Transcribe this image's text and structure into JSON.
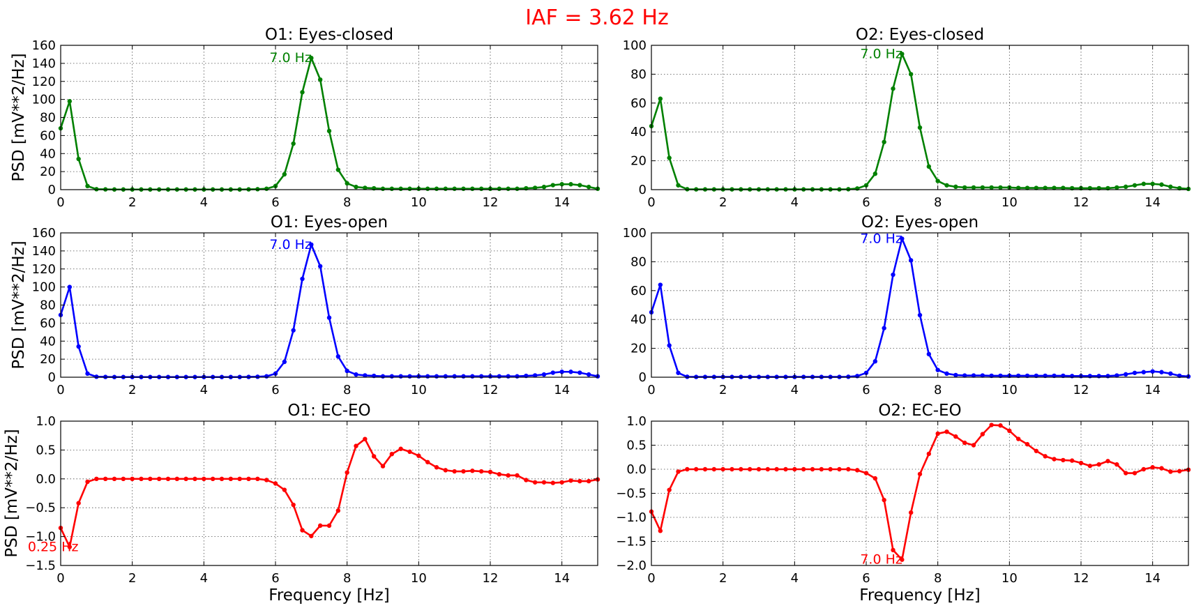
{
  "figure": {
    "suptitle": "IAF = 3.62 Hz",
    "suptitle_color": "#ff0000"
  },
  "chart_data": [
    {
      "id": "o1-ec",
      "type": "line",
      "title": "O1: Eyes-closed",
      "ylabel": "PSD [mV**2/Hz]",
      "xlabel": "",
      "xlim": [
        0,
        15
      ],
      "ylim": [
        0,
        160
      ],
      "xticks": [
        "0",
        "2",
        "4",
        "6",
        "8",
        "10",
        "12",
        "14"
      ],
      "yticks": [
        "0",
        "20",
        "40",
        "60",
        "80",
        "100",
        "120",
        "140",
        "160"
      ],
      "grid": true,
      "color": "#008000",
      "annotation": {
        "text": "7.0 Hz",
        "x": 7.0,
        "y": 146
      },
      "x": [
        0,
        0.25,
        0.5,
        0.75,
        1,
        1.25,
        1.5,
        1.75,
        2,
        2.25,
        2.5,
        2.75,
        3,
        3.25,
        3.5,
        3.75,
        4,
        4.25,
        4.5,
        4.75,
        5,
        5.25,
        5.5,
        5.75,
        6,
        6.25,
        6.5,
        6.75,
        7,
        7.25,
        7.5,
        7.75,
        8,
        8.25,
        8.5,
        8.75,
        9,
        9.25,
        9.5,
        9.75,
        10,
        10.25,
        10.5,
        10.75,
        11,
        11.25,
        11.5,
        11.75,
        12,
        12.25,
        12.5,
        12.75,
        13,
        13.25,
        13.5,
        13.75,
        14,
        14.25,
        14.5,
        14.75,
        15
      ],
      "y": [
        68,
        98,
        34,
        4,
        0.5,
        0.3,
        0.2,
        0.2,
        0.2,
        0.2,
        0.2,
        0.2,
        0.2,
        0.2,
        0.2,
        0.2,
        0.2,
        0.2,
        0.2,
        0.2,
        0.2,
        0.3,
        0.5,
        1,
        4,
        17,
        51,
        108,
        146,
        122,
        65,
        22,
        7,
        3,
        2,
        1.5,
        1,
        1,
        1,
        1,
        1,
        1,
        1,
        1,
        1,
        1,
        1,
        1,
        1,
        1,
        1,
        1,
        1.5,
        2,
        3,
        5,
        6,
        6,
        5,
        3,
        1
      ]
    },
    {
      "id": "o2-ec",
      "type": "line",
      "title": "O2: Eyes-closed",
      "ylabel": "",
      "xlabel": "",
      "xlim": [
        0,
        15
      ],
      "ylim": [
        0,
        100
      ],
      "xticks": [
        "0",
        "2",
        "4",
        "6",
        "8",
        "10",
        "12",
        "14"
      ],
      "yticks": [
        "0",
        "20",
        "40",
        "60",
        "80",
        "100"
      ],
      "grid": true,
      "color": "#008000",
      "annotation": {
        "text": "7.0 Hz",
        "x": 7.0,
        "y": 94
      },
      "x": [
        0,
        0.25,
        0.5,
        0.75,
        1,
        1.25,
        1.5,
        1.75,
        2,
        2.25,
        2.5,
        2.75,
        3,
        3.25,
        3.5,
        3.75,
        4,
        4.25,
        4.5,
        4.75,
        5,
        5.25,
        5.5,
        5.75,
        6,
        6.25,
        6.5,
        6.75,
        7,
        7.25,
        7.5,
        7.75,
        8,
        8.25,
        8.5,
        8.75,
        9,
        9.25,
        9.5,
        9.75,
        10,
        10.25,
        10.5,
        10.75,
        11,
        11.25,
        11.5,
        11.75,
        12,
        12.25,
        12.5,
        12.75,
        13,
        13.25,
        13.5,
        13.75,
        14,
        14.25,
        14.5,
        14.75,
        15
      ],
      "y": [
        44,
        63,
        22,
        3,
        0.3,
        0.2,
        0.2,
        0.2,
        0.2,
        0.2,
        0.2,
        0.2,
        0.2,
        0.2,
        0.2,
        0.2,
        0.2,
        0.2,
        0.2,
        0.2,
        0.2,
        0.2,
        0.3,
        0.8,
        3,
        11,
        33,
        70,
        94,
        80,
        43,
        16,
        6,
        3,
        2,
        1.5,
        1.5,
        1.5,
        1.5,
        1.5,
        1.5,
        1.2,
        1.2,
        1.2,
        1.2,
        1.2,
        1.2,
        1,
        1,
        1,
        1,
        1,
        1.5,
        2,
        3,
        4,
        4,
        3.5,
        2,
        1,
        0.5
      ]
    },
    {
      "id": "o1-eo",
      "type": "line",
      "title": "O1: Eyes-open",
      "ylabel": "PSD [mV**2/Hz]",
      "xlabel": "",
      "xlim": [
        0,
        15
      ],
      "ylim": [
        0,
        160
      ],
      "xticks": [
        "0",
        "2",
        "4",
        "6",
        "8",
        "10",
        "12",
        "14"
      ],
      "yticks": [
        "0",
        "20",
        "40",
        "60",
        "80",
        "100",
        "120",
        "140",
        "160"
      ],
      "grid": true,
      "color": "#0000ff",
      "annotation": {
        "text": "7.0 Hz",
        "x": 7.0,
        "y": 147
      },
      "x": [
        0,
        0.25,
        0.5,
        0.75,
        1,
        1.25,
        1.5,
        1.75,
        2,
        2.25,
        2.5,
        2.75,
        3,
        3.25,
        3.5,
        3.75,
        4,
        4.25,
        4.5,
        4.75,
        5,
        5.25,
        5.5,
        5.75,
        6,
        6.25,
        6.5,
        6.75,
        7,
        7.25,
        7.5,
        7.75,
        8,
        8.25,
        8.5,
        8.75,
        9,
        9.25,
        9.5,
        9.75,
        10,
        10.25,
        10.5,
        10.75,
        11,
        11.25,
        11.5,
        11.75,
        12,
        12.25,
        12.5,
        12.75,
        13,
        13.25,
        13.5,
        13.75,
        14,
        14.25,
        14.5,
        14.75,
        15
      ],
      "y": [
        69,
        100,
        34,
        4,
        0.5,
        0.3,
        0.2,
        0.2,
        0.2,
        0.2,
        0.2,
        0.2,
        0.2,
        0.2,
        0.2,
        0.2,
        0.2,
        0.2,
        0.2,
        0.2,
        0.2,
        0.3,
        0.5,
        1,
        4,
        17,
        52,
        109,
        147,
        123,
        66,
        23,
        7,
        3,
        2,
        1.5,
        1,
        1,
        1,
        1,
        1,
        1,
        1,
        1,
        1,
        1,
        1,
        1,
        1,
        1,
        1,
        1,
        1.5,
        2,
        3,
        5,
        6,
        6,
        5,
        3,
        1
      ]
    },
    {
      "id": "o2-eo",
      "type": "line",
      "title": "O2: Eyes-open",
      "ylabel": "",
      "xlabel": "",
      "xlim": [
        0,
        15
      ],
      "ylim": [
        0,
        100
      ],
      "xticks": [
        "0",
        "2",
        "4",
        "6",
        "8",
        "10",
        "12",
        "14"
      ],
      "yticks": [
        "0",
        "20",
        "40",
        "60",
        "80",
        "100"
      ],
      "grid": true,
      "color": "#0000ff",
      "annotation": {
        "text": "7.0 Hz",
        "x": 7.0,
        "y": 96
      },
      "x": [
        0,
        0.25,
        0.5,
        0.75,
        1,
        1.25,
        1.5,
        1.75,
        2,
        2.25,
        2.5,
        2.75,
        3,
        3.25,
        3.5,
        3.75,
        4,
        4.25,
        4.5,
        4.75,
        5,
        5.25,
        5.5,
        5.75,
        6,
        6.25,
        6.5,
        6.75,
        7,
        7.25,
        7.5,
        7.75,
        8,
        8.25,
        8.5,
        8.75,
        9,
        9.25,
        9.5,
        9.75,
        10,
        10.25,
        10.5,
        10.75,
        11,
        11.25,
        11.5,
        11.75,
        12,
        12.25,
        12.5,
        12.75,
        13,
        13.25,
        13.5,
        13.75,
        14,
        14.25,
        14.5,
        14.75,
        15
      ],
      "y": [
        45,
        64,
        22,
        3,
        0.3,
        0.2,
        0.2,
        0.2,
        0.2,
        0.2,
        0.2,
        0.2,
        0.2,
        0.2,
        0.2,
        0.2,
        0.2,
        0.2,
        0.2,
        0.2,
        0.2,
        0.2,
        0.3,
        0.8,
        3,
        11,
        34,
        71,
        96,
        81,
        43,
        16,
        5,
        2.5,
        1.5,
        1.2,
        1.2,
        1.2,
        1,
        1,
        1,
        1,
        1,
        1,
        1,
        1,
        1,
        0.8,
        0.8,
        0.8,
        0.8,
        0.8,
        1.2,
        2,
        3,
        3.5,
        4,
        3.5,
        2.5,
        1,
        0.5
      ]
    },
    {
      "id": "o1-diff",
      "type": "line",
      "title": "O1: EC-EO",
      "ylabel": "PSD [mV**2/Hz]",
      "xlabel": "Frequency [Hz]",
      "xlim": [
        0,
        15
      ],
      "ylim": [
        -1.5,
        1.0
      ],
      "xticks": [
        "0",
        "2",
        "4",
        "6",
        "8",
        "10",
        "12",
        "14"
      ],
      "yticks": [
        "−1.5",
        "−1.0",
        "−0.5",
        "0.0",
        "0.5",
        "1.0"
      ],
      "grid": true,
      "color": "#ff0000",
      "annotation": {
        "text": "0.25 Hz",
        "x": 0.25,
        "y": -1.18
      },
      "x": [
        0,
        0.25,
        0.5,
        0.75,
        1,
        1.25,
        1.5,
        1.75,
        2,
        2.25,
        2.5,
        2.75,
        3,
        3.25,
        3.5,
        3.75,
        4,
        4.25,
        4.5,
        4.75,
        5,
        5.25,
        5.5,
        5.75,
        6,
        6.25,
        6.5,
        6.75,
        7,
        7.25,
        7.5,
        7.75,
        8,
        8.25,
        8.5,
        8.75,
        9,
        9.25,
        9.5,
        9.75,
        10,
        10.25,
        10.5,
        10.75,
        11,
        11.25,
        11.5,
        11.75,
        12,
        12.25,
        12.5,
        12.75,
        13,
        13.25,
        13.5,
        13.75,
        14,
        14.25,
        14.5,
        14.75,
        15
      ],
      "y": [
        -0.85,
        -1.18,
        -0.42,
        -0.05,
        0,
        0,
        0,
        0,
        0,
        0,
        0,
        0,
        0,
        0,
        0,
        0,
        0,
        0,
        0,
        0,
        0,
        0,
        0,
        -0.02,
        -0.08,
        -0.19,
        -0.45,
        -0.89,
        -0.99,
        -0.81,
        -0.81,
        -0.55,
        0.11,
        0.57,
        0.69,
        0.39,
        0.22,
        0.43,
        0.52,
        0.47,
        0.4,
        0.29,
        0.2,
        0.15,
        0.13,
        0.13,
        0.14,
        0.13,
        0.12,
        0.08,
        0.06,
        0.06,
        -0.02,
        -0.06,
        -0.06,
        -0.07,
        -0.06,
        -0.03,
        -0.04,
        -0.04,
        -0.01
      ]
    },
    {
      "id": "o2-diff",
      "type": "line",
      "title": "O2: EC-EO",
      "ylabel": "",
      "xlabel": "Frequency [Hz]",
      "xlim": [
        0,
        15
      ],
      "ylim": [
        -2.0,
        1.0
      ],
      "xticks": [
        "0",
        "2",
        "4",
        "6",
        "8",
        "10",
        "12",
        "14"
      ],
      "yticks": [
        "−2.0",
        "−1.5",
        "−1.0",
        "−0.5",
        "0.0",
        "0.5",
        "1.0"
      ],
      "grid": true,
      "color": "#ff0000",
      "annotation": {
        "text": "7.0 Hz",
        "x": 7.0,
        "y": -1.88
      },
      "x": [
        0,
        0.25,
        0.5,
        0.75,
        1,
        1.25,
        1.5,
        1.75,
        2,
        2.25,
        2.5,
        2.75,
        3,
        3.25,
        3.5,
        3.75,
        4,
        4.25,
        4.5,
        4.75,
        5,
        5.25,
        5.5,
        5.75,
        6,
        6.25,
        6.5,
        6.75,
        7,
        7.25,
        7.5,
        7.75,
        8,
        8.25,
        8.5,
        8.75,
        9,
        9.25,
        9.5,
        9.75,
        10,
        10.25,
        10.5,
        10.75,
        11,
        11.25,
        11.5,
        11.75,
        12,
        12.25,
        12.5,
        12.75,
        13,
        13.25,
        13.5,
        13.75,
        14,
        14.25,
        14.5,
        14.75,
        15
      ],
      "y": [
        -0.88,
        -1.28,
        -0.43,
        -0.05,
        0,
        0,
        0,
        0,
        0,
        0,
        0,
        0,
        0,
        0,
        0,
        0,
        0,
        0,
        0,
        0,
        0,
        0,
        0,
        -0.02,
        -0.08,
        -0.19,
        -0.64,
        -1.68,
        -1.88,
        -0.9,
        -0.1,
        0.32,
        0.74,
        0.78,
        0.68,
        0.55,
        0.5,
        0.73,
        0.92,
        0.91,
        0.8,
        0.63,
        0.52,
        0.38,
        0.27,
        0.21,
        0.19,
        0.18,
        0.13,
        0.07,
        0.1,
        0.17,
        0.1,
        -0.08,
        -0.08,
        0,
        0.04,
        0.02,
        -0.05,
        -0.04,
        -0.01
      ]
    }
  ]
}
